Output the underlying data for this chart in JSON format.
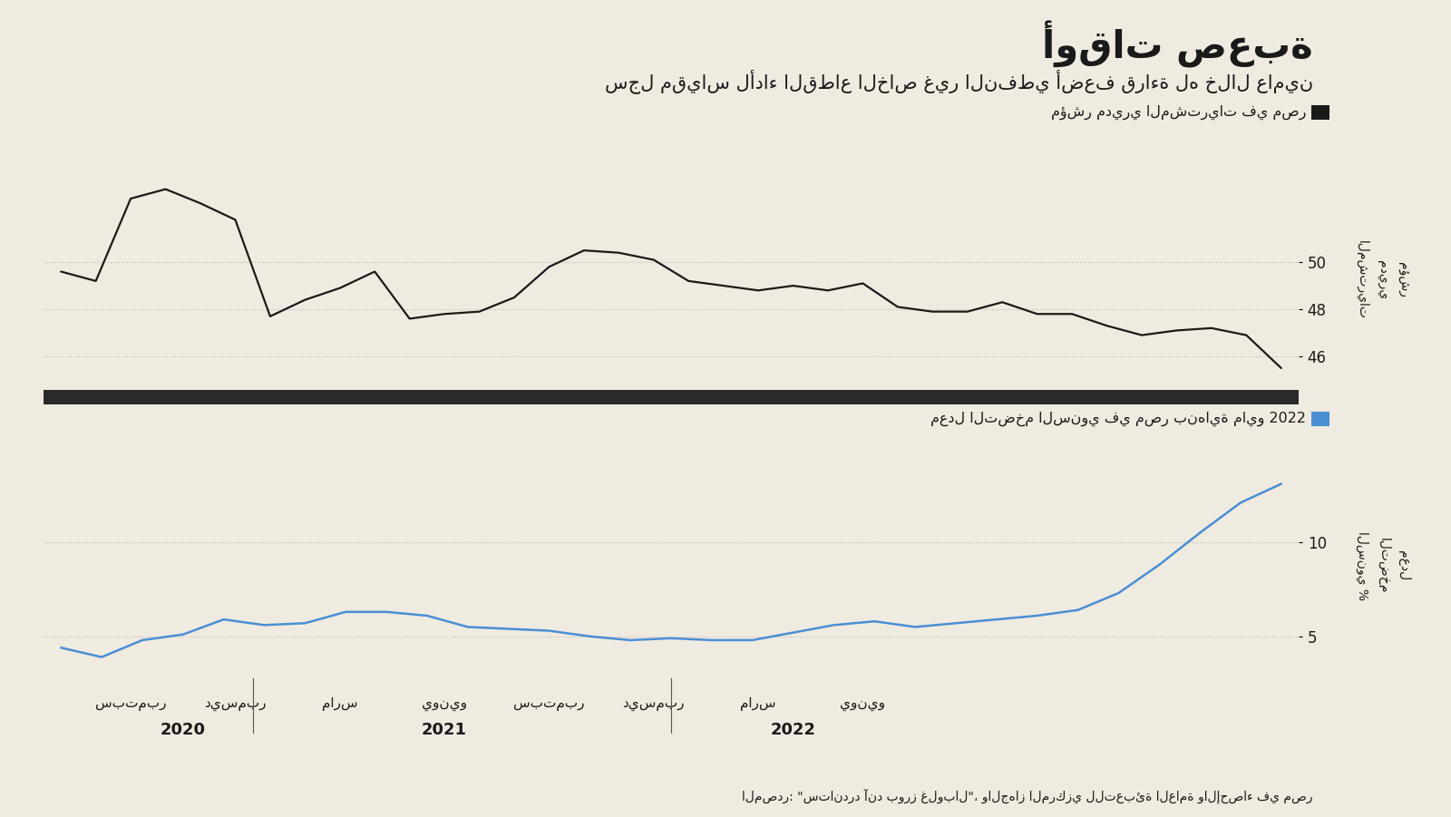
{
  "title": "أوقات صعبة",
  "subtitle": "سجل مقياس لأداء القطاع الخاص غير النفطي أضعف قراءة له خلال عامين",
  "legend1": "مؤشر مديري المشتريات في مصر",
  "legend2": "معدل التضخم السنوي في مصر بنهاية مايو 2022",
  "source": "المصدر: \"ستاندرد آند بورز غلوبال\"، والجهاز المركزي للتعبئة العامة والإحصاء في مصر",
  "ylabel1": "مؤشر\nمديري\nالمشتريات",
  "ylabel2": "معدل\nالتضخم\nالسنوي %",
  "pmi_data": [
    49.6,
    49.2,
    52.7,
    53.1,
    52.5,
    51.8,
    47.7,
    48.4,
    48.9,
    49.6,
    47.6,
    47.8,
    47.9,
    48.5,
    49.8,
    50.5,
    50.4,
    50.1,
    49.2,
    49.0,
    48.8,
    49.0,
    48.8,
    49.1,
    48.1,
    47.9,
    47.9,
    48.3,
    47.8,
    47.8,
    47.3,
    46.9,
    47.1,
    47.2,
    46.9,
    45.5
  ],
  "inflation_data": [
    4.4,
    3.9,
    4.8,
    5.1,
    5.9,
    5.6,
    5.7,
    6.3,
    6.3,
    6.1,
    5.5,
    5.4,
    5.3,
    5.0,
    4.8,
    4.9,
    4.8,
    4.8,
    5.2,
    5.6,
    5.8,
    5.5,
    5.7,
    5.9,
    6.1,
    6.4,
    7.3,
    8.8,
    10.5,
    12.1,
    13.1
  ],
  "pmi_ylim": [
    45.0,
    53.5
  ],
  "pmi_yticks": [
    46,
    48,
    50
  ],
  "inflation_ylim": [
    3.0,
    14.5
  ],
  "inflation_yticks": [
    5,
    10
  ],
  "background_color": "#f0ebe0",
  "line_color1": "#1a1a1a",
  "line_color2": "#4a8fd4",
  "separator_color": "#2a2a2a",
  "grid_color": "#bbbbbb",
  "title_color": "#1a1a1a",
  "text_color": "#1a1a1a",
  "legend_square_color1": "#1a1a1a",
  "legend_square_color2": "#4a8fd4",
  "x_tick_labels_ar": [
    "سبتمبر",
    "ديسمبر",
    "مارس",
    "يونيو",
    "سبتمبر",
    "ديسمبر",
    "مارس",
    "يونيو"
  ],
  "x_year_labels": [
    "2020",
    "2021",
    "2022"
  ],
  "n_pmi": 36,
  "n_inflation": 31
}
